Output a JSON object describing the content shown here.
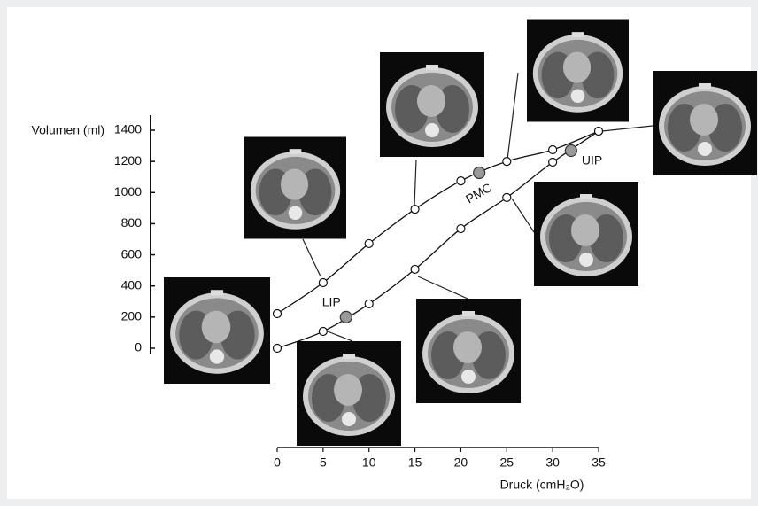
{
  "chart_data": {
    "type": "line",
    "x_label": "Druck (cmH₂O)",
    "y_label": "Volumen (ml)",
    "x": [
      0,
      5,
      10,
      15,
      20,
      25,
      30,
      35
    ],
    "series": [
      {
        "color": "#111111",
        "values": [
          222,
          421,
          672,
          893,
          1075,
          1200,
          1275,
          1394
        ]
      },
      {
        "color": "#111111",
        "values": [
          0,
          108,
          285,
          507,
          768,
          968,
          1195,
          1394
        ]
      }
    ],
    "annotations": [
      {
        "label": "LIP",
        "x": 7.5,
        "y": 200,
        "color": "#999999"
      },
      {
        "label": "PMC",
        "x": 22,
        "y": 1127,
        "color": "#999999"
      },
      {
        "label": "UIP",
        "x": 32,
        "y": 1269,
        "color": "#999999"
      }
    ],
    "xlim": [
      0,
      35
    ],
    "ylim": [
      0,
      1400
    ],
    "xticks": [
      0,
      5,
      10,
      15,
      20,
      25,
      30,
      35
    ],
    "yticks": [
      0,
      200,
      400,
      600,
      800,
      1000,
      1200,
      1400
    ]
  }
}
